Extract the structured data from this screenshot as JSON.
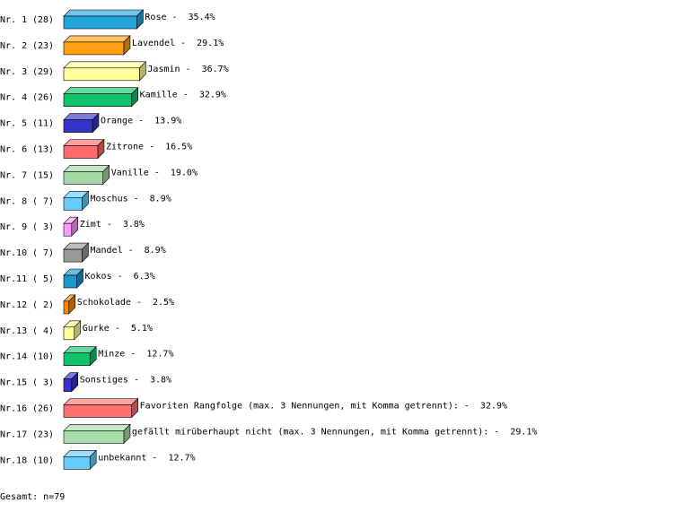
{
  "chart_data": {
    "type": "bar3d",
    "categories": [
      "Nr. 1",
      "Nr. 2",
      "Nr. 3",
      "Nr. 4",
      "Nr. 5",
      "Nr. 6",
      "Nr. 7",
      "Nr. 8",
      "Nr. 9",
      "Nr.10",
      "Nr.11",
      "Nr.12",
      "Nr.13",
      "Nr.14",
      "Nr.15",
      "Nr.16",
      "Nr.17",
      "Nr.18"
    ],
    "counts": [
      "(28)",
      "(23)",
      "(29)",
      "(26)",
      "(11)",
      "(13)",
      "(15)",
      "( 7)",
      "( 3)",
      "( 7)",
      "( 5)",
      "( 2)",
      "( 4)",
      "(10)",
      "( 3)",
      "(26)",
      "(23)",
      "(10)"
    ],
    "names": [
      "Rose -",
      "Lavendel -",
      "Jasmin -",
      "Kamille -",
      "Orange -",
      "Zitrone -",
      "Vanille -",
      "Moschus -",
      "Zimt -",
      "Mandel -",
      "Kokos -",
      "Schokolade -",
      "Gurke -",
      "Minze -",
      "Sonstiges -",
      "Favoriten Rangfolge (max. 3 Nennungen, mit Komma getrennt): -",
      "gefällt mirüberhaupt nicht (max. 3 Nennungen, mit Komma getrennt): -",
      "unbekannt -"
    ],
    "values": [
      35.4,
      29.1,
      36.7,
      32.9,
      13.9,
      16.5,
      19.0,
      8.9,
      3.8,
      8.9,
      6.3,
      2.5,
      5.1,
      12.7,
      3.8,
      32.9,
      29.1,
      12.7
    ],
    "value_labels": [
      "35.4%",
      "29.1%",
      "36.7%",
      "32.9%",
      "13.9%",
      "16.5%",
      "19.0%",
      "8.9%",
      "3.8%",
      "8.9%",
      "6.3%",
      "2.5%",
      "5.1%",
      "12.7%",
      "3.8%",
      "32.9%",
      "29.1%",
      "12.7%"
    ],
    "colors": [
      "#22a4dc",
      "#ffa010",
      "#ffff99",
      "#10c46c",
      "#3434c8",
      "#ff6a6a",
      "#a4d8a4",
      "#66ccff",
      "#ff99ff",
      "#999999",
      "#1a98cc",
      "#ff8800",
      "#ffff99",
      "#10c46c",
      "#3434c8",
      "#ff7070",
      "#a8dca8",
      "#66ccff"
    ],
    "footer": "Gesamt: n=79"
  }
}
